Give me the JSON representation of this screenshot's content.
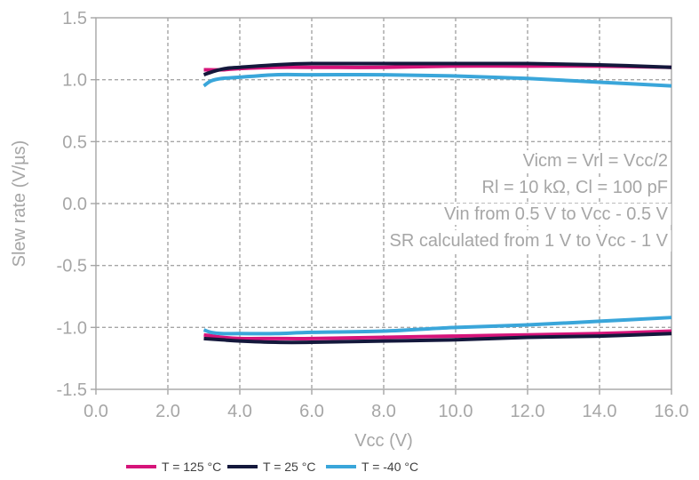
{
  "chart_data": {
    "type": "line",
    "xlabel": "Vcc (V)",
    "ylabel": "Slew rate (V/µs)",
    "xlim": [
      0,
      16
    ],
    "ylim": [
      -1.5,
      1.5
    ],
    "x_ticks": [
      "0.0",
      "2.0",
      "4.0",
      "6.0",
      "8.0",
      "10.0",
      "12.0",
      "14.0",
      "16.0"
    ],
    "y_ticks": [
      "1.5",
      "1.0",
      "0.5",
      "0.0",
      "-0.5",
      "-1.0",
      "-1.5"
    ],
    "grid": true,
    "legend_position": "bottom",
    "annotations": [
      "Vicm = Vrl = Vcc/2",
      "Rl = 10 kΩ, Cl = 100 pF",
      "Vin from 0.5 V to Vcc - 0.5 V",
      "SR calculated from 1 V to Vcc - 1 V"
    ],
    "series": [
      {
        "name": "T = 125 °C",
        "color": "#d6147a",
        "rising": {
          "x": [
            3.0,
            3.5,
            4.0,
            5.0,
            6.0,
            8.0,
            10.0,
            12.0,
            14.0,
            16.0
          ],
          "y": [
            1.08,
            1.08,
            1.09,
            1.1,
            1.1,
            1.1,
            1.11,
            1.11,
            1.11,
            1.1
          ]
        },
        "falling": {
          "x": [
            3.0,
            3.5,
            4.0,
            5.0,
            6.0,
            8.0,
            10.0,
            12.0,
            14.0,
            16.0
          ],
          "y": [
            -1.06,
            -1.08,
            -1.09,
            -1.09,
            -1.09,
            -1.08,
            -1.07,
            -1.06,
            -1.05,
            -1.03
          ]
        }
      },
      {
        "name": "T = 25 °C",
        "color": "#14183c",
        "rising": {
          "x": [
            3.0,
            3.3,
            3.6,
            4.0,
            5.0,
            6.0,
            8.0,
            10.0,
            12.0,
            14.0,
            16.0
          ],
          "y": [
            1.04,
            1.07,
            1.09,
            1.1,
            1.12,
            1.13,
            1.13,
            1.13,
            1.13,
            1.12,
            1.1
          ]
        },
        "falling": {
          "x": [
            3.0,
            3.5,
            4.0,
            5.0,
            6.0,
            8.0,
            10.0,
            12.0,
            14.0,
            16.0
          ],
          "y": [
            -1.09,
            -1.1,
            -1.11,
            -1.12,
            -1.12,
            -1.11,
            -1.1,
            -1.08,
            -1.07,
            -1.05
          ]
        }
      },
      {
        "name": "T = -40 °C",
        "color": "#3aa6da",
        "rising": {
          "x": [
            3.0,
            3.2,
            3.5,
            4.0,
            5.0,
            6.0,
            8.0,
            10.0,
            12.0,
            14.0,
            16.0
          ],
          "y": [
            0.95,
            0.99,
            1.01,
            1.02,
            1.04,
            1.04,
            1.04,
            1.03,
            1.01,
            0.98,
            0.95
          ]
        },
        "falling": {
          "x": [
            3.0,
            3.2,
            3.5,
            4.0,
            5.0,
            6.0,
            8.0,
            10.0,
            12.0,
            14.0,
            16.0
          ],
          "y": [
            -1.02,
            -1.04,
            -1.05,
            -1.05,
            -1.05,
            -1.04,
            -1.03,
            -1.0,
            -0.98,
            -0.95,
            -0.92
          ]
        }
      }
    ]
  }
}
